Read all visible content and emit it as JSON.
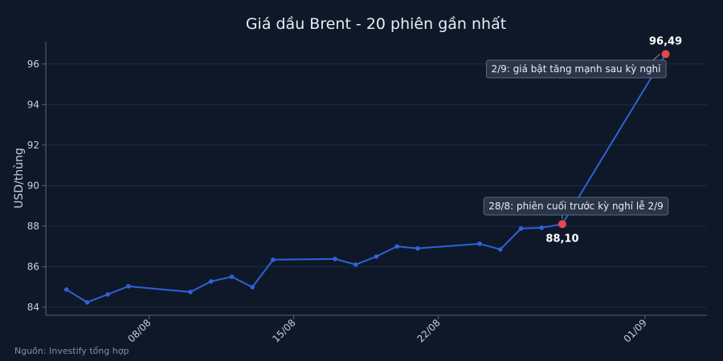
{
  "chart_data": {
    "type": "line",
    "title": "Giá dầu Brent - 20 phiên gần nhất",
    "y_label": "USD/thùng",
    "source": "Nguồn: Investify tổng hợp",
    "x": [
      "04/08",
      "05/08",
      "06/08",
      "07/08",
      "10/08",
      "11/08",
      "12/08",
      "13/08",
      "14/08",
      "17/08",
      "18/08",
      "19/08",
      "20/08",
      "21/08",
      "24/08",
      "25/08",
      "26/08",
      "27/08",
      "28/08",
      "02/09"
    ],
    "series": [
      {
        "name": "Brent",
        "color": "#2f62d9",
        "highlight_color": "#e5484d",
        "values": [
          84.87,
          84.24,
          84.63,
          85.03,
          84.75,
          85.27,
          85.5,
          84.99,
          86.34,
          86.38,
          86.1,
          86.5,
          87.0,
          86.9,
          87.13,
          86.85,
          87.88,
          87.92,
          88.1,
          96.49
        ],
        "value_labels": [
          null,
          null,
          null,
          null,
          null,
          null,
          null,
          null,
          null,
          null,
          null,
          null,
          null,
          null,
          null,
          null,
          null,
          null,
          "88,10",
          "96,49"
        ]
      }
    ],
    "xlim": [
      "03/08",
      "04/09"
    ],
    "xticks": [
      "08/08",
      "15/08",
      "22/08",
      "01/09"
    ],
    "ylim": [
      83.6,
      97.1
    ],
    "yticks": [
      84,
      86,
      88,
      90,
      92,
      94,
      96
    ],
    "grid": true,
    "annotations": [
      "2/9: giá bật tăng mạnh sau kỳ nghỉ",
      "28/8: phiên cuối trước kỳ nghỉ lễ 2/9"
    ]
  }
}
